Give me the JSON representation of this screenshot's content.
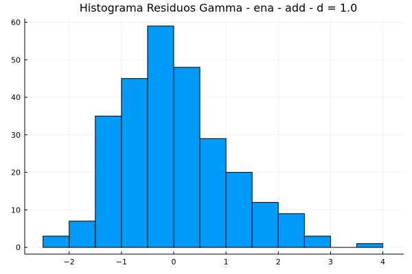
{
  "chart_data": {
    "type": "bar",
    "title": "Histograma Residuos Gamma - ena - add - d = 1.0",
    "xlabel": "",
    "ylabel": "",
    "bin_edges": [
      -2.5,
      -2.0,
      -1.5,
      -1.0,
      -0.5,
      0.0,
      0.5,
      1.0,
      1.5,
      2.0,
      2.5,
      3.0,
      3.5,
      4.0
    ],
    "values": [
      3,
      7,
      35,
      45,
      59,
      48,
      29,
      20,
      12,
      9,
      3,
      0,
      1
    ],
    "xlim": [
      -2.85,
      4.4
    ],
    "ylim": [
      -1.8,
      61
    ],
    "xticks": [
      -2,
      -1,
      0,
      1,
      2,
      3,
      4
    ],
    "xtick_labels": [
      "−2",
      "−1",
      "0",
      "1",
      "2",
      "3",
      "4"
    ],
    "yticks": [
      0,
      10,
      20,
      30,
      40,
      50,
      60
    ],
    "ytick_labels": [
      "0",
      "10",
      "20",
      "30",
      "40",
      "50",
      "60"
    ],
    "bar_color": "#009af9",
    "grid": true,
    "legend": false
  }
}
